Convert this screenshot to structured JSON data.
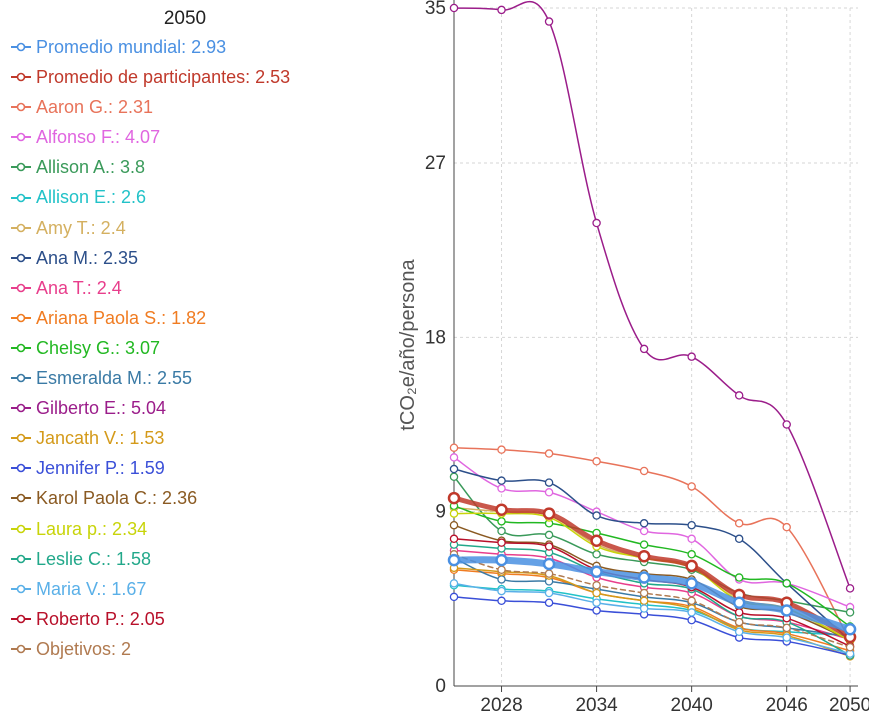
{
  "chart_data": {
    "type": "line",
    "legend_title": "2050",
    "ylabel": "tCO₂e/año/persona",
    "xlabel": "",
    "ylim": [
      0,
      35
    ],
    "y_ticks": [
      "0",
      "9",
      "18",
      "27",
      "35"
    ],
    "xlim": [
      2025,
      2050.5
    ],
    "x_ticks": [
      "2028",
      "2034",
      "2040",
      "2046",
      "2050"
    ],
    "x": [
      2025,
      2028,
      2031,
      2034,
      2037,
      2040,
      2043,
      2046,
      2050
    ],
    "series": [
      {
        "name": "Promedio mundial",
        "label": "Promedio mundial: 2.93",
        "color": "#4a90e2",
        "width": 7,
        "dashed": false,
        "values": [
          6.5,
          6.5,
          6.3,
          5.9,
          5.6,
          5.3,
          4.3,
          3.9,
          2.93
        ]
      },
      {
        "name": "Promedio de participantes",
        "label": "Promedio de participantes: 2.53",
        "color": "#c0392b",
        "width": 5,
        "dashed": false,
        "values": [
          9.7,
          9.1,
          8.9,
          7.5,
          6.7,
          6.2,
          4.7,
          4.3,
          2.53
        ]
      },
      {
        "name": "Aaron G.",
        "label": "Aaron G.: 2.31",
        "color": "#e8735a",
        "width": 1.5,
        "dashed": false,
        "values": [
          12.3,
          12.2,
          12.0,
          11.6,
          11.1,
          10.3,
          8.4,
          8.2,
          2.31
        ]
      },
      {
        "name": "Alfonso F.",
        "label": "Alfonso F.: 4.07",
        "color": "#e066e0",
        "width": 1.5,
        "dashed": false,
        "values": [
          11.8,
          10.2,
          10.0,
          9.0,
          8.0,
          7.6,
          5.5,
          5.3,
          4.07
        ]
      },
      {
        "name": "Allison A.",
        "label": "Allison A.: 3.8",
        "color": "#3a9a5a",
        "width": 1.5,
        "dashed": false,
        "values": [
          10.8,
          8.0,
          7.8,
          6.8,
          6.4,
          6.0,
          4.8,
          4.4,
          3.8
        ]
      },
      {
        "name": "Allison E.",
        "label": "Allison E.: 2.6",
        "color": "#22c2c8",
        "width": 1.5,
        "dashed": false,
        "values": [
          5.2,
          5.0,
          4.9,
          4.5,
          4.2,
          3.9,
          3.0,
          2.8,
          2.6
        ]
      },
      {
        "name": "Amy T.",
        "label": "Amy T.: 2.4",
        "color": "#d4b060",
        "width": 1.5,
        "dashed": false,
        "values": [
          9.2,
          9.0,
          8.8,
          7.3,
          6.6,
          6.2,
          4.5,
          4.0,
          2.4
        ]
      },
      {
        "name": "Ana M.",
        "label": "Ana M.: 2.35",
        "color": "#2c4f8a",
        "width": 1.5,
        "dashed": false,
        "values": [
          11.2,
          10.6,
          10.5,
          8.8,
          8.4,
          8.3,
          7.6,
          5.3,
          2.35
        ]
      },
      {
        "name": "Ana T.",
        "label": "Ana T.: 2.4",
        "color": "#e83e8c",
        "width": 1.5,
        "dashed": false,
        "values": [
          7.0,
          6.8,
          6.6,
          5.6,
          5.1,
          4.8,
          3.6,
          3.3,
          2.4
        ]
      },
      {
        "name": "Ariana Paola S.",
        "label": "Ariana Paola S.: 1.82",
        "color": "#f07c22",
        "width": 1.5,
        "dashed": false,
        "values": [
          6.0,
          5.8,
          5.6,
          4.8,
          4.4,
          4.1,
          3.0,
          2.7,
          1.82
        ]
      },
      {
        "name": "Chelsy G.",
        "label": "Chelsy G.: 3.07",
        "color": "#22b822",
        "width": 1.5,
        "dashed": false,
        "values": [
          9.3,
          8.5,
          8.4,
          7.9,
          7.3,
          6.8,
          5.6,
          5.3,
          3.07
        ]
      },
      {
        "name": "Esmeralda M.",
        "label": "Esmeralda M.: 2.55",
        "color": "#3a7aa5",
        "width": 1.5,
        "dashed": false,
        "values": [
          6.6,
          5.5,
          5.4,
          5.0,
          4.6,
          4.3,
          3.3,
          3.0,
          2.55
        ]
      },
      {
        "name": "Gilberto E.",
        "label": "Gilberto E.: 5.04",
        "color": "#9b1d8a",
        "width": 1.5,
        "dashed": false,
        "values": [
          35.0,
          34.9,
          34.3,
          23.9,
          17.4,
          17.0,
          15.0,
          13.5,
          5.04
        ]
      },
      {
        "name": "Jancath V.",
        "label": "Jancath V.: 1.53",
        "color": "#d49a1a",
        "width": 1.5,
        "dashed": false,
        "values": [
          6.1,
          5.9,
          5.7,
          4.8,
          4.4,
          4.0,
          2.9,
          2.6,
          1.53
        ]
      },
      {
        "name": "Jennifer P.",
        "label": "Jennifer P.: 1.59",
        "color": "#3a4fd8",
        "width": 1.5,
        "dashed": false,
        "values": [
          4.6,
          4.4,
          4.3,
          3.9,
          3.7,
          3.4,
          2.5,
          2.3,
          1.59
        ]
      },
      {
        "name": "Karol Paola C.",
        "label": "Karol Paola C.: 2.36",
        "color": "#8a5a22",
        "width": 1.5,
        "dashed": false,
        "values": [
          8.3,
          7.5,
          7.3,
          6.2,
          5.8,
          5.5,
          4.1,
          3.8,
          2.36
        ]
      },
      {
        "name": "Laura p.",
        "label": "Laura p.: 2.34",
        "color": "#c8d40a",
        "width": 1.5,
        "dashed": false,
        "values": [
          8.9,
          8.9,
          8.7,
          7.2,
          6.6,
          6.1,
          4.4,
          4.0,
          2.34
        ]
      },
      {
        "name": "Leslie C.",
        "label": "Leslie C.: 1.58",
        "color": "#22a88a",
        "width": 1.5,
        "dashed": false,
        "values": [
          7.3,
          7.1,
          6.9,
          5.9,
          5.3,
          5.0,
          3.6,
          3.3,
          1.58
        ]
      },
      {
        "name": "Maria V.",
        "label": "Maria V.: 1.67",
        "color": "#5ab0e8",
        "width": 1.5,
        "dashed": false,
        "values": [
          5.3,
          4.9,
          4.8,
          4.3,
          4.0,
          3.8,
          2.8,
          2.5,
          1.67
        ]
      },
      {
        "name": "Roberto P.",
        "label": "Roberto P.: 2.05",
        "color": "#b8102a",
        "width": 1.5,
        "dashed": false,
        "values": [
          7.6,
          7.4,
          7.2,
          6.0,
          5.5,
          5.1,
          3.8,
          3.5,
          2.05
        ]
      },
      {
        "name": "Objetivos",
        "label": "Objetivos: 2",
        "color": "#b07a50",
        "width": 1.5,
        "dashed": true,
        "values": [
          6.8,
          6.0,
          5.8,
          5.2,
          4.8,
          4.4,
          3.3,
          3.0,
          2.0
        ]
      }
    ]
  }
}
